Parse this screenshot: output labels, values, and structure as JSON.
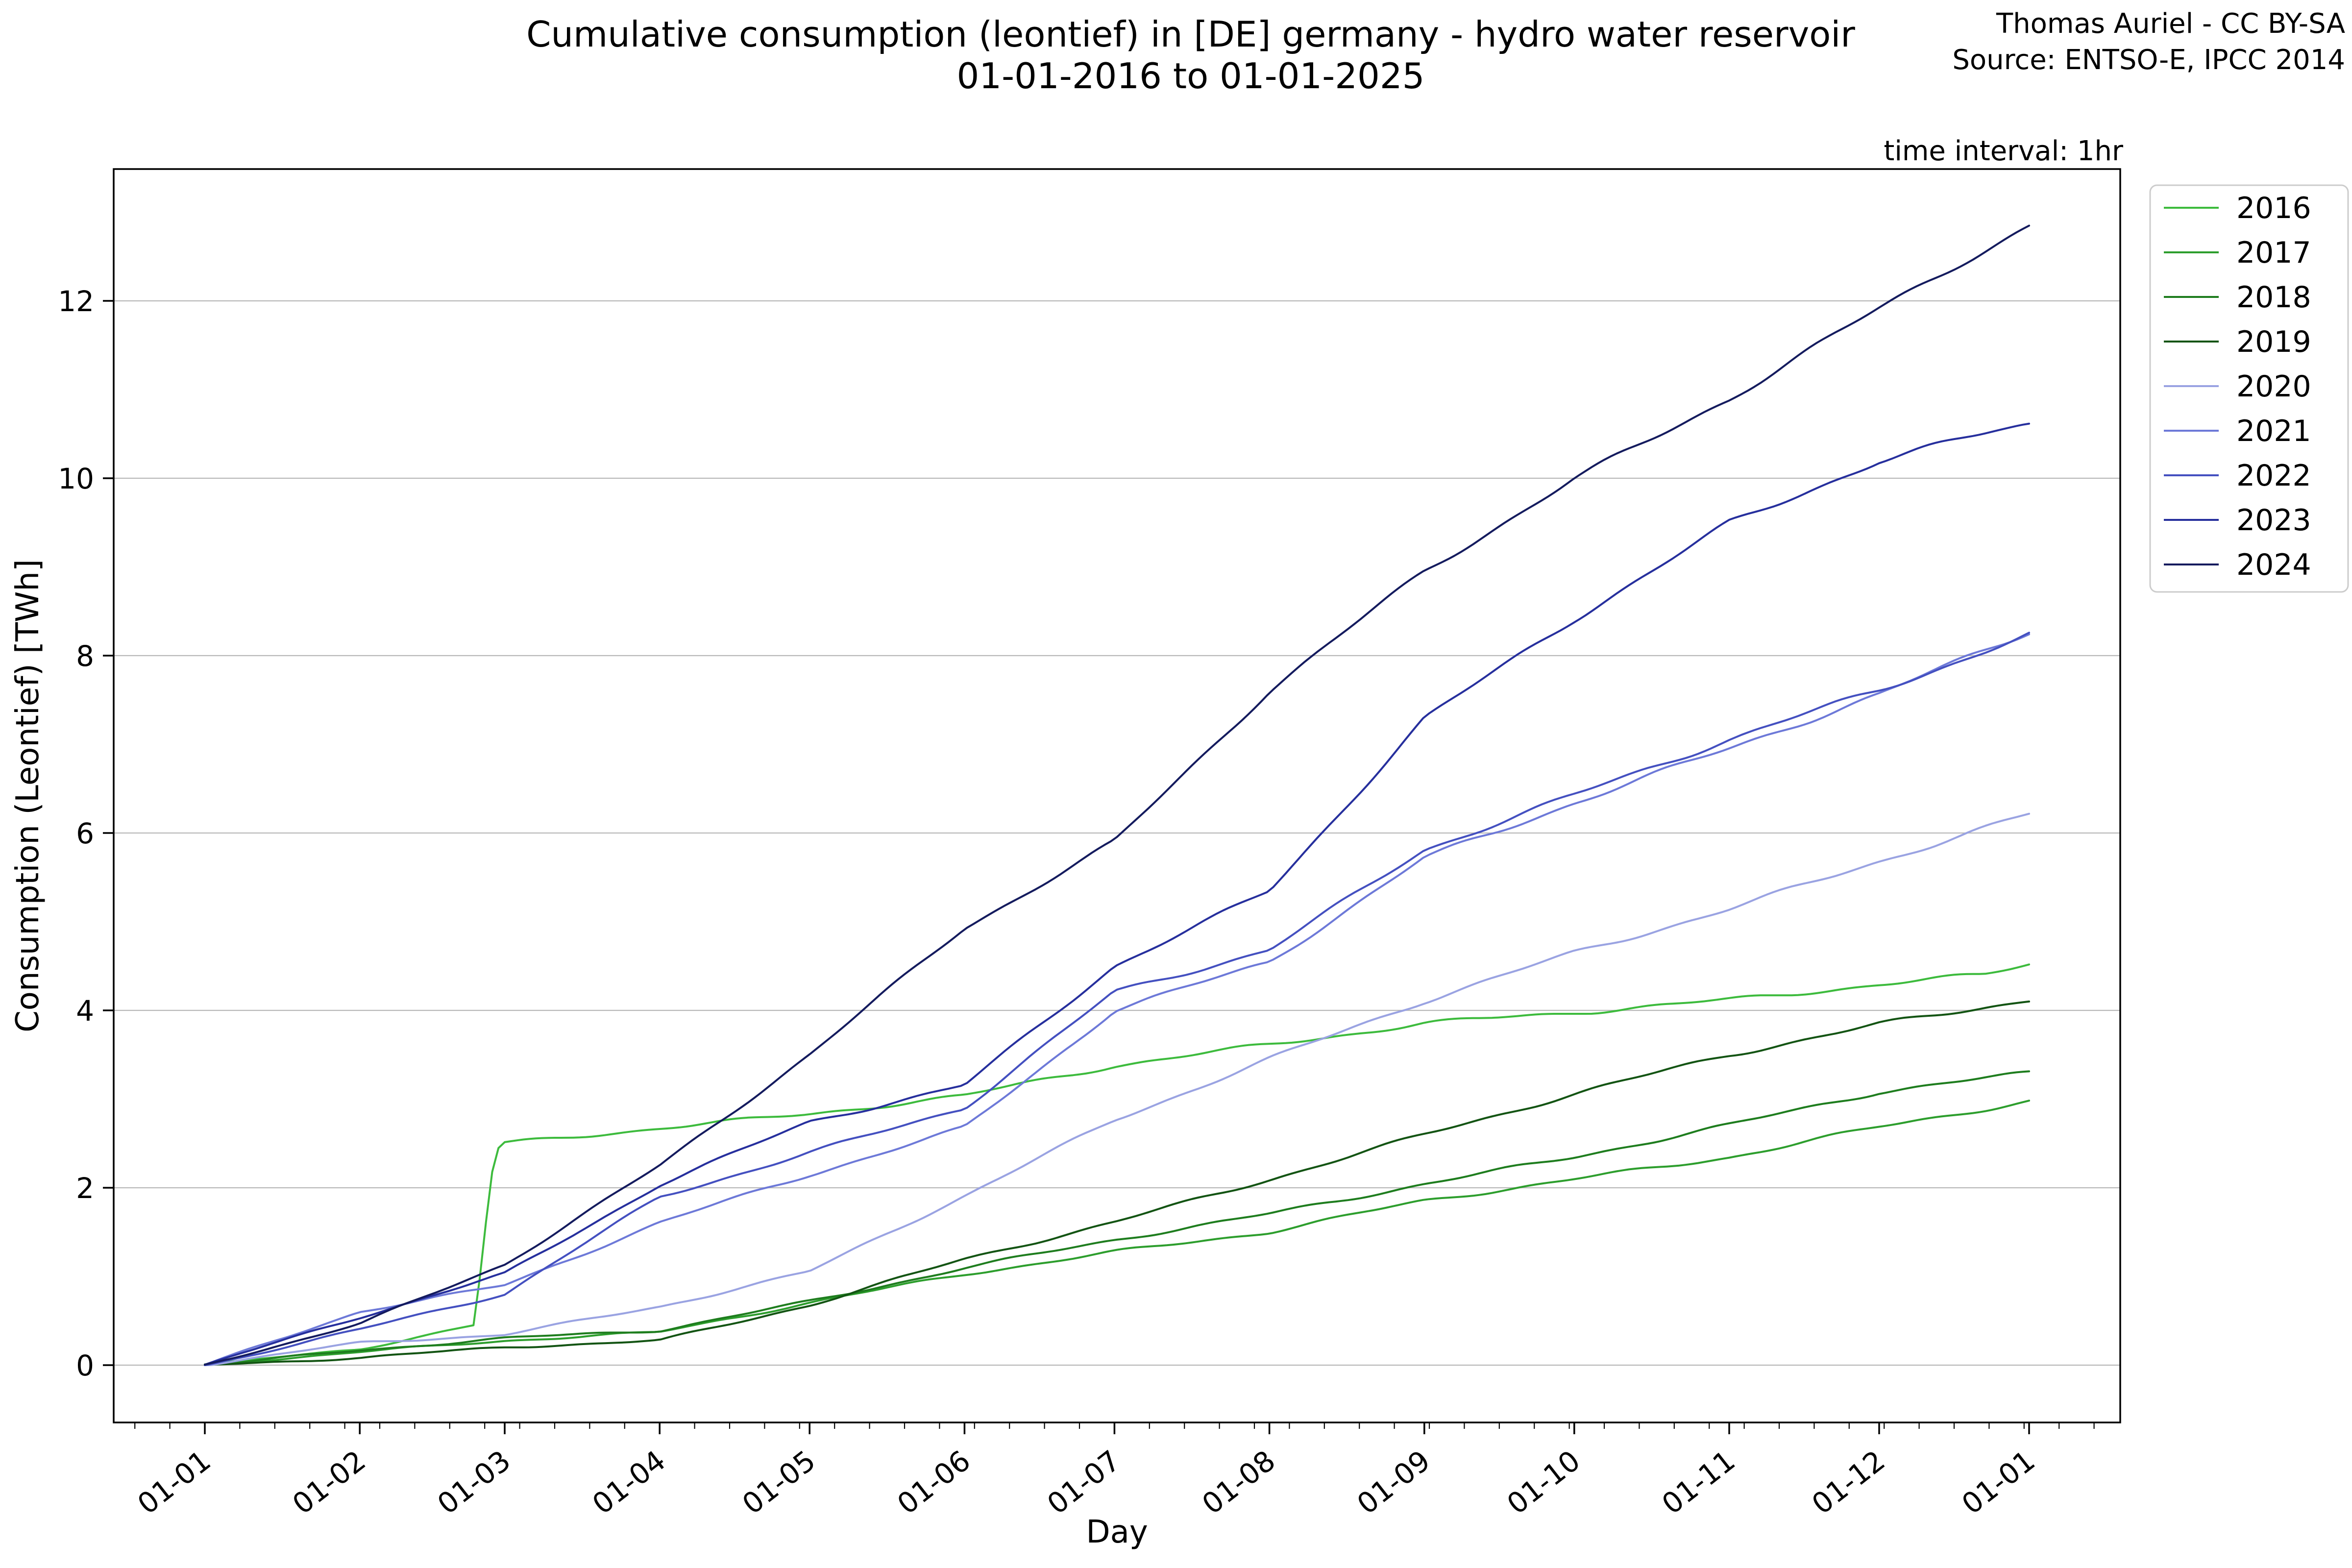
{
  "title": {
    "line1": "Cumulative consumption (leontief) in [DE] germany - hydro water reservoir",
    "line2": "01-01-2016 to 01-01-2025"
  },
  "attribution": {
    "line1": "Thomas Auriel - CC BY-SA",
    "line2": "Source: ENTSO-E, IPCC 2014"
  },
  "time_interval_note": "time interval: 1hr",
  "chart_data": {
    "type": "line",
    "title": "Cumulative consumption (leontief) in [DE] germany - hydro water reservoir 01-01-2016 to 01-01-2025",
    "xlabel": "Day",
    "ylabel": "Consumption (Leontief) [TWh]",
    "grid": "horizontal-only",
    "legend_position": "outside-right",
    "x_unit": "day-of-year",
    "xlim_days": [
      -18,
      383
    ],
    "ylim": [
      -0.65,
      13.49
    ],
    "yticks": {
      "values": [
        0,
        2,
        4,
        6,
        8,
        10,
        12
      ],
      "labels": [
        "0",
        "2",
        "4",
        "6",
        "8",
        "10",
        "12"
      ]
    },
    "xticks": {
      "days": [
        0,
        31,
        60,
        91,
        121,
        152,
        182,
        213,
        244,
        274,
        305,
        335,
        365
      ],
      "labels": [
        "01-01",
        "01-02",
        "01-03",
        "01-04",
        "01-05",
        "01-06",
        "01-07",
        "01-08",
        "01-09",
        "01-10",
        "01-11",
        "01-12",
        "01-01"
      ],
      "minor_interval_days": 7
    },
    "colors": {
      "grid": "#b9b9b9",
      "spine": "#000000",
      "legend_border": "#cccccc"
    },
    "series": [
      {
        "name": "2016",
        "color": "#3dbb3d",
        "days": [
          0,
          31,
          54,
          56,
          58,
          60,
          91,
          121,
          152,
          182,
          213,
          244,
          274,
          305,
          335,
          356,
          365
        ],
        "values": [
          0,
          0.18,
          0.45,
          1.5,
          2.4,
          2.5,
          2.68,
          2.83,
          3.03,
          3.38,
          3.62,
          3.85,
          3.97,
          4.12,
          4.3,
          4.4,
          4.52
        ]
      },
      {
        "name": "2017",
        "color": "#2d9e2d",
        "days": [
          0,
          31,
          60,
          91,
          121,
          152,
          182,
          213,
          244,
          274,
          305,
          335,
          365
        ],
        "values": [
          0,
          0.15,
          0.28,
          0.37,
          0.7,
          1.03,
          1.28,
          1.5,
          1.85,
          2.1,
          2.35,
          2.68,
          2.97
        ]
      },
      {
        "name": "2018",
        "color": "#1e7d1e",
        "days": [
          0,
          31,
          60,
          91,
          121,
          152,
          182,
          213,
          244,
          274,
          305,
          335,
          365
        ],
        "values": [
          0,
          0.17,
          0.3,
          0.39,
          0.72,
          1.1,
          1.41,
          1.7,
          2.05,
          2.35,
          2.7,
          3.08,
          3.3
        ]
      },
      {
        "name": "2019",
        "color": "#135413",
        "days": [
          0,
          31,
          60,
          91,
          121,
          152,
          182,
          213,
          244,
          274,
          305,
          335,
          365
        ],
        "values": [
          0,
          0.08,
          0.2,
          0.28,
          0.68,
          1.19,
          1.61,
          2.1,
          2.6,
          3.05,
          3.5,
          3.85,
          4.12
        ]
      },
      {
        "name": "2020",
        "color": "#9aa3e2",
        "days": [
          0,
          31,
          60,
          91,
          121,
          152,
          182,
          213,
          244,
          274,
          305,
          335,
          365
        ],
        "values": [
          0,
          0.25,
          0.35,
          0.66,
          1.05,
          1.91,
          2.77,
          3.45,
          4.1,
          4.65,
          5.15,
          5.68,
          6.2
        ]
      },
      {
        "name": "2021",
        "color": "#6d79d8",
        "days": [
          0,
          31,
          60,
          91,
          121,
          152,
          182,
          213,
          244,
          274,
          305,
          335,
          365
        ],
        "values": [
          0,
          0.61,
          0.9,
          1.6,
          2.15,
          2.68,
          4.0,
          4.54,
          5.72,
          6.35,
          6.95,
          7.55,
          8.28
        ]
      },
      {
        "name": "2022",
        "color": "#4450c0",
        "days": [
          0,
          31,
          60,
          91,
          121,
          152,
          182,
          213,
          244,
          274,
          305,
          335,
          365
        ],
        "values": [
          0,
          0.4,
          0.8,
          1.9,
          2.4,
          2.9,
          4.2,
          4.69,
          5.82,
          6.42,
          7.05,
          7.62,
          8.24
        ]
      },
      {
        "name": "2023",
        "color": "#262f9d",
        "days": [
          0,
          31,
          60,
          91,
          121,
          152,
          182,
          213,
          244,
          274,
          305,
          335,
          358,
          365
        ],
        "values": [
          0,
          0.54,
          1.03,
          2.04,
          2.74,
          3.15,
          4.51,
          5.35,
          7.28,
          8.41,
          9.5,
          10.2,
          10.52,
          10.6
        ]
      },
      {
        "name": "2024",
        "color": "#141b5e",
        "days": [
          0,
          31,
          60,
          91,
          121,
          152,
          182,
          213,
          244,
          274,
          305,
          335,
          352,
          365
        ],
        "values": [
          0,
          0.47,
          1.14,
          2.24,
          3.5,
          4.94,
          5.9,
          7.6,
          8.95,
          10.0,
          10.9,
          11.9,
          12.45,
          12.84
        ]
      }
    ]
  }
}
